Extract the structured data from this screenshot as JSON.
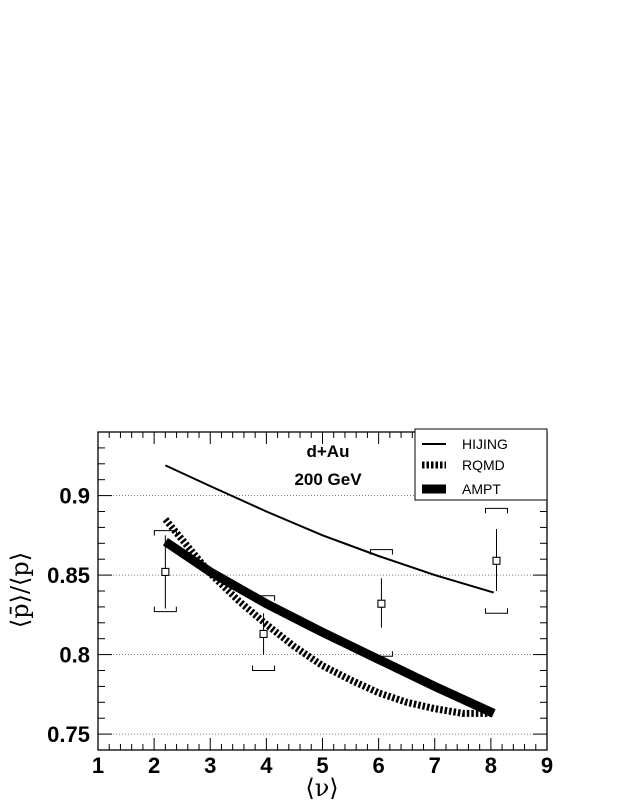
{
  "chart_data": {
    "type": "line",
    "title": "",
    "annotations": [
      "d+Au",
      "200 GeV"
    ],
    "xlabel": "⟨ν⟩",
    "ylabel": "⟨p̄⟩/⟨p⟩",
    "xlim": [
      1,
      9
    ],
    "ylim": [
      0.74,
      0.94
    ],
    "xticks": [
      1,
      2,
      3,
      4,
      5,
      6,
      7,
      8,
      9
    ],
    "yticks": [
      0.75,
      0.8,
      0.85,
      0.9
    ],
    "ytick_labels": [
      "0.75",
      "0.8",
      "0.85",
      "0.9"
    ],
    "grid": "horizontal dotted at y ticks",
    "legend": {
      "placement": "top-right",
      "entries": [
        "HIJING",
        "RQMD",
        "AMPT"
      ]
    },
    "series": [
      {
        "name": "HIJING",
        "style": "thin-solid",
        "x": [
          2.2,
          3,
          4,
          5,
          6,
          7,
          8.05
        ],
        "y": [
          0.919,
          0.906,
          0.89,
          0.875,
          0.862,
          0.85,
          0.839
        ]
      },
      {
        "name": "RQMD",
        "style": "thick-dashed",
        "x": [
          2.2,
          2.6,
          3,
          3.5,
          4,
          4.5,
          5,
          5.5,
          6,
          6.5,
          7,
          7.5,
          8.05
        ],
        "y": [
          0.885,
          0.868,
          0.851,
          0.834,
          0.819,
          0.805,
          0.793,
          0.784,
          0.776,
          0.77,
          0.766,
          0.763,
          0.763
        ]
      },
      {
        "name": "AMPT",
        "style": "very-thick-solid",
        "x": [
          2.2,
          3,
          4,
          5,
          6,
          7,
          8.05
        ],
        "y": [
          0.871,
          0.852,
          0.832,
          0.814,
          0.797,
          0.78,
          0.763
        ]
      }
    ],
    "data_points": {
      "marker": "open-square",
      "points": [
        {
          "x": 2.2,
          "y": 0.852,
          "stat_err": [
            0.829,
            0.875
          ],
          "sys_err": [
            0.827,
            0.878
          ]
        },
        {
          "x": 3.95,
          "y": 0.813,
          "stat_err": [
            0.8,
            0.826
          ],
          "sys_err": [
            0.79,
            0.837
          ]
        },
        {
          "x": 6.05,
          "y": 0.832,
          "stat_err": [
            0.817,
            0.848
          ],
          "sys_err": [
            0.799,
            0.866
          ]
        },
        {
          "x": 8.1,
          "y": 0.859,
          "stat_err": [
            0.84,
            0.879
          ],
          "sys_err": [
            0.826,
            0.892
          ]
        }
      ]
    }
  }
}
